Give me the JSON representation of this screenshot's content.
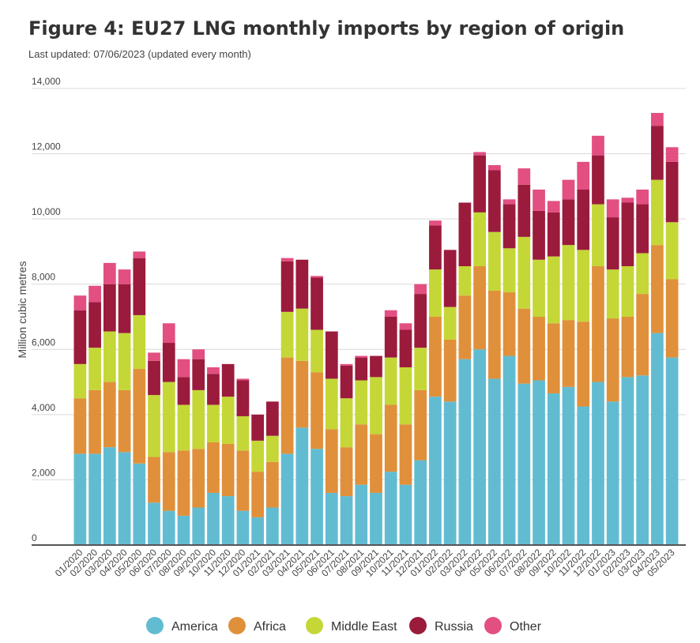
{
  "title": "Figure 4: EU27 LNG monthly imports by region of origin",
  "subtitle": "Last updated: 07/06/2023 (updated every month)",
  "chart_data": {
    "type": "bar",
    "stacked": true,
    "ylabel": "Million cubic metres",
    "ylim": [
      0,
      14000
    ],
    "yticks": [
      0,
      2000,
      4000,
      6000,
      8000,
      10000,
      12000,
      14000
    ],
    "ytick_labels": [
      "0",
      "2,000",
      "4,000",
      "6,000",
      "8,000",
      "10,000",
      "12,000",
      "14,000"
    ],
    "grid": true,
    "legend_position": "bottom",
    "categories": [
      "01/2020",
      "02/2020",
      "03/2020",
      "04/2020",
      "05/2020",
      "06/2020",
      "07/2020",
      "08/2020",
      "09/2020",
      "10/2020",
      "11/2020",
      "12/2020",
      "01/2021",
      "02/2021",
      "03/2021",
      "04/2021",
      "05/2021",
      "06/2021",
      "07/2021",
      "08/2021",
      "09/2021",
      "10/2021",
      "11/2021",
      "12/2021",
      "01/2022",
      "02/2022",
      "03/2022",
      "04/2022",
      "05/2022",
      "06/2022",
      "07/2022",
      "08/2022",
      "09/2022",
      "10/2022",
      "11/2022",
      "12/2022",
      "01/2023",
      "02/2023",
      "03/2023",
      "04/2023",
      "05/2023"
    ],
    "series": [
      {
        "name": "America",
        "color": "#62bcd1",
        "values": [
          2800,
          2800,
          3000,
          2850,
          2500,
          1300,
          1050,
          900,
          1150,
          1600,
          1500,
          1050,
          850,
          1150,
          2800,
          3600,
          2950,
          1600,
          1500,
          1850,
          1600,
          2250,
          1850,
          2600,
          4550,
          4400,
          5700,
          6000,
          5100,
          5800,
          4950,
          5050,
          4650,
          4850,
          4250,
          5000,
          4400,
          5150,
          5200,
          6500,
          5750
        ]
      },
      {
        "name": "Africa",
        "color": "#e0903a",
        "values": [
          1700,
          1950,
          2000,
          1900,
          2900,
          1400,
          1800,
          2000,
          1800,
          1550,
          1600,
          1850,
          1400,
          1400,
          2950,
          2050,
          2350,
          1950,
          1500,
          1850,
          1800,
          2050,
          1850,
          2150,
          2450,
          1900,
          1950,
          2550,
          2700,
          1950,
          2300,
          1950,
          2150,
          2050,
          2600,
          3550,
          2550,
          1850,
          2500,
          2700,
          2400
        ]
      },
      {
        "name": "Middle East",
        "color": "#c4d737",
        "values": [
          1050,
          1300,
          1550,
          1750,
          1650,
          1900,
          2150,
          1400,
          1800,
          1150,
          1450,
          1050,
          950,
          800,
          1400,
          1600,
          1300,
          1550,
          1500,
          1350,
          1750,
          1450,
          1750,
          1300,
          1450,
          1000,
          900,
          1650,
          1800,
          1350,
          2200,
          1750,
          2050,
          2300,
          2200,
          1900,
          1500,
          1550,
          1250,
          2000,
          1750
        ]
      },
      {
        "name": "Russia",
        "color": "#9b1b3c",
        "values": [
          1650,
          1400,
          1450,
          1500,
          1750,
          1050,
          1200,
          850,
          950,
          950,
          1000,
          1100,
          800,
          1050,
          1550,
          1500,
          1600,
          1450,
          1000,
          700,
          650,
          1250,
          1150,
          1650,
          1350,
          1750,
          1950,
          1750,
          1900,
          1350,
          1600,
          1500,
          1350,
          1400,
          1850,
          1500,
          1600,
          1950,
          1500,
          1650,
          1850
        ]
      },
      {
        "name": "Other",
        "color": "#e24f80",
        "values": [
          450,
          500,
          650,
          450,
          200,
          250,
          600,
          550,
          300,
          200,
          0,
          50,
          0,
          0,
          100,
          0,
          50,
          0,
          50,
          50,
          0,
          200,
          200,
          300,
          150,
          0,
          0,
          100,
          150,
          150,
          500,
          650,
          350,
          600,
          850,
          600,
          550,
          150,
          450,
          400,
          450
        ]
      }
    ]
  }
}
